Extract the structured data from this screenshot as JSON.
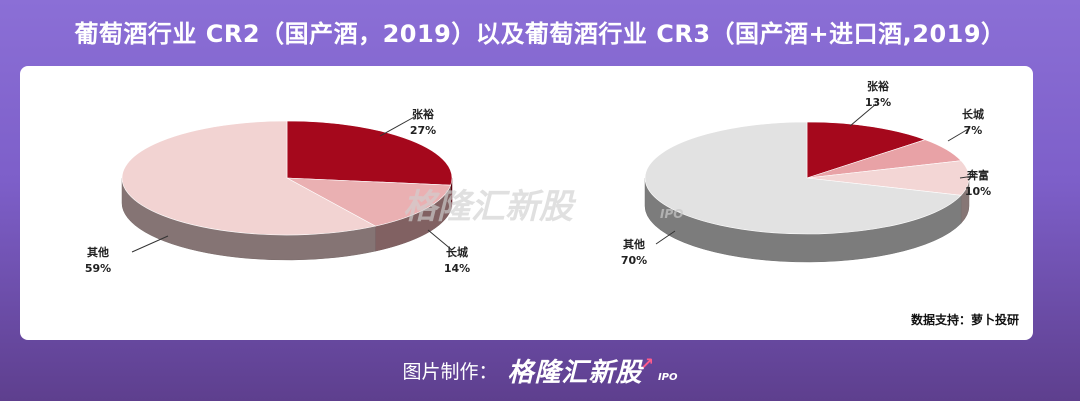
{
  "title": "葡萄酒行业 CR2（国产酒，2019）以及葡萄酒行业 CR3（国产酒+进口酒,2019）",
  "watermark": {
    "brand": "格隆汇新股",
    "sub": "IPO"
  },
  "source": "数据支持：萝卜投研",
  "footer": {
    "label": "图片制作：",
    "brand": "格隆汇新股",
    "sub": "IPO"
  },
  "colors": {
    "accent": "#9b0e1e",
    "mid": "#e7a8aa",
    "light": "#f0d0d0",
    "gray": "#e0e0e0"
  },
  "chart_data": [
    {
      "type": "pie",
      "title": "",
      "slices": [
        {
          "label": "张裕",
          "value": 27,
          "display": "27%",
          "color": "#a5081c"
        },
        {
          "label": "长城",
          "value": 14,
          "display": "14%",
          "color": "#eab0b2"
        },
        {
          "label": "其他",
          "value": 59,
          "display": "59%",
          "color": "#f2d3d2"
        }
      ]
    },
    {
      "type": "pie",
      "title": "",
      "slices": [
        {
          "label": "张裕",
          "value": 13,
          "display": "13%",
          "color": "#a5081c"
        },
        {
          "label": "长城",
          "value": 7,
          "display": "7%",
          "color": "#e8a2a6"
        },
        {
          "label": "奔富",
          "value": 10,
          "display": "10%",
          "color": "#f3d6d5"
        },
        {
          "label": "其他",
          "value": 70,
          "display": "70%",
          "color": "#e2e2e2"
        }
      ]
    }
  ]
}
